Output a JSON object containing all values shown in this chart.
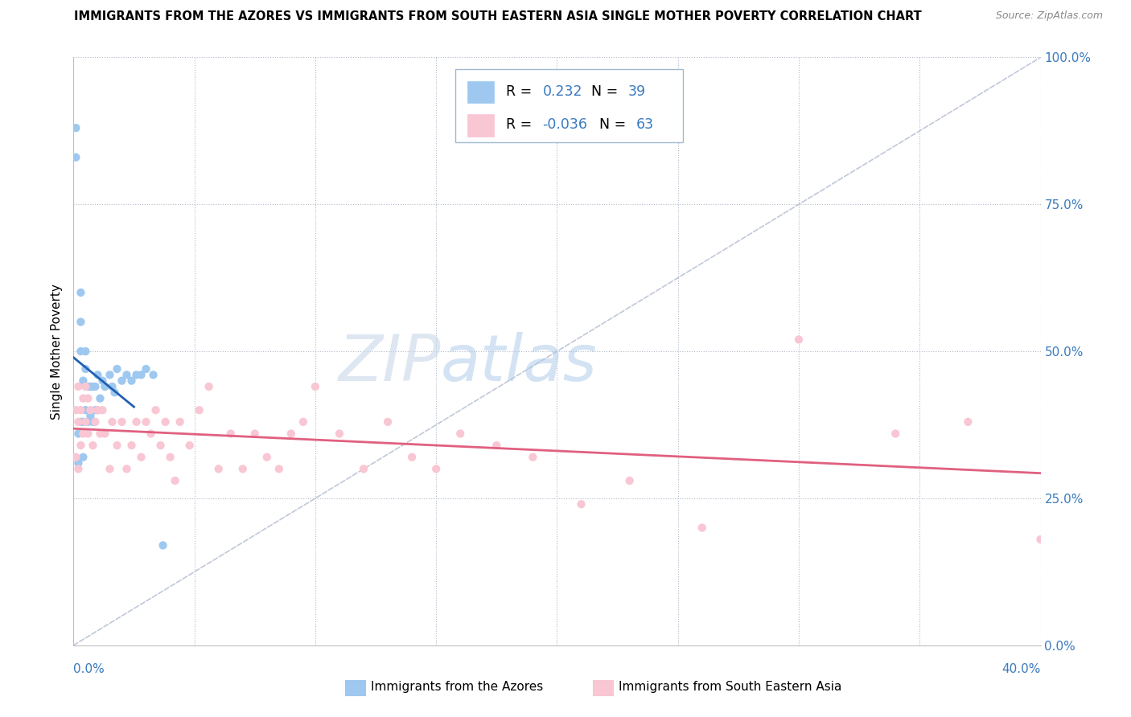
{
  "title": "IMMIGRANTS FROM THE AZORES VS IMMIGRANTS FROM SOUTH EASTERN ASIA SINGLE MOTHER POVERTY CORRELATION CHART",
  "source": "Source: ZipAtlas.com",
  "ylabel": "Single Mother Poverty",
  "r1": "0.232",
  "n1": "39",
  "r2": "-0.036",
  "n2": "63",
  "color1": "#9ec8f0",
  "color2": "#f9c6d4",
  "trendline1_color": "#2060b0",
  "trendline2_color": "#e06080",
  "diag_color": "#c0c8d8",
  "legend_label1": "Immigrants from the Azores",
  "legend_label2": "Immigrants from South Eastern Asia",
  "xmin": 0.0,
  "xmax": 0.4,
  "ymin": 0.0,
  "ymax": 1.0,
  "azores_x": [
    0.001,
    0.001,
    0.002,
    0.002,
    0.003,
    0.003,
    0.003,
    0.003,
    0.004,
    0.004,
    0.004,
    0.005,
    0.005,
    0.005,
    0.006,
    0.006,
    0.007,
    0.007,
    0.008,
    0.008,
    0.009,
    0.009,
    0.01,
    0.01,
    0.011,
    0.012,
    0.013,
    0.015,
    0.016,
    0.017,
    0.018,
    0.02,
    0.022,
    0.024,
    0.026,
    0.028,
    0.03,
    0.033,
    0.037
  ],
  "azores_y": [
    0.88,
    0.83,
    0.36,
    0.31,
    0.6,
    0.55,
    0.5,
    0.38,
    0.45,
    0.38,
    0.32,
    0.5,
    0.47,
    0.4,
    0.44,
    0.38,
    0.44,
    0.39,
    0.44,
    0.38,
    0.44,
    0.4,
    0.46,
    0.4,
    0.42,
    0.45,
    0.44,
    0.46,
    0.44,
    0.43,
    0.47,
    0.45,
    0.46,
    0.45,
    0.46,
    0.46,
    0.47,
    0.46,
    0.17
  ],
  "sea_x": [
    0.001,
    0.001,
    0.002,
    0.002,
    0.002,
    0.003,
    0.003,
    0.004,
    0.004,
    0.005,
    0.005,
    0.006,
    0.006,
    0.007,
    0.008,
    0.009,
    0.01,
    0.011,
    0.012,
    0.013,
    0.015,
    0.016,
    0.018,
    0.02,
    0.022,
    0.024,
    0.026,
    0.028,
    0.03,
    0.032,
    0.034,
    0.036,
    0.038,
    0.04,
    0.042,
    0.044,
    0.048,
    0.052,
    0.056,
    0.06,
    0.065,
    0.07,
    0.075,
    0.08,
    0.085,
    0.09,
    0.095,
    0.1,
    0.11,
    0.12,
    0.13,
    0.14,
    0.15,
    0.16,
    0.175,
    0.19,
    0.21,
    0.23,
    0.26,
    0.3,
    0.34,
    0.37,
    0.4
  ],
  "sea_y": [
    0.4,
    0.32,
    0.44,
    0.38,
    0.3,
    0.4,
    0.34,
    0.42,
    0.36,
    0.44,
    0.38,
    0.42,
    0.36,
    0.4,
    0.34,
    0.38,
    0.4,
    0.36,
    0.4,
    0.36,
    0.3,
    0.38,
    0.34,
    0.38,
    0.3,
    0.34,
    0.38,
    0.32,
    0.38,
    0.36,
    0.4,
    0.34,
    0.38,
    0.32,
    0.28,
    0.38,
    0.34,
    0.4,
    0.44,
    0.3,
    0.36,
    0.3,
    0.36,
    0.32,
    0.3,
    0.36,
    0.38,
    0.44,
    0.36,
    0.3,
    0.38,
    0.32,
    0.3,
    0.36,
    0.34,
    0.32,
    0.24,
    0.28,
    0.2,
    0.52,
    0.36,
    0.38,
    0.18
  ]
}
